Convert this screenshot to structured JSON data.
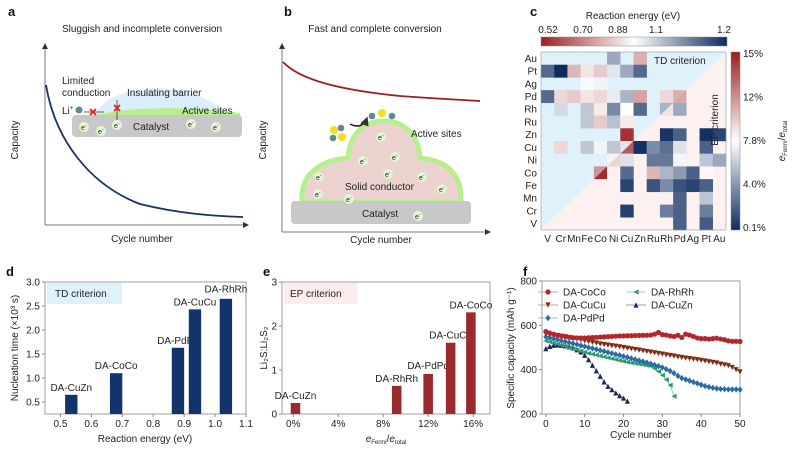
{
  "panel_a": {
    "label": "a",
    "title": "Sluggish and incomplete conversion",
    "ylabel": "Capacity",
    "xlabel": "Cycle number",
    "limited": "Limited",
    "conduction": "conduction",
    "li": "Li",
    "li_charge": "+",
    "barrier": "Insulating barrier",
    "active": "Active sites",
    "catalyst": "Catalyst",
    "electron": "e",
    "electron_charge": "-",
    "curve_color": "#1a2f6b"
  },
  "panel_b": {
    "label": "b",
    "title": "Fast and complete conversion",
    "ylabel": "Capacity",
    "xlabel": "Cycle number",
    "active": "Active sites",
    "conductor": "Solid conductor",
    "catalyst": "Catalyst",
    "electron": "e",
    "electron_charge": "-",
    "curve_color": "#9b1e22"
  },
  "chart_data": [
    {
      "panel": "c",
      "type": "heatmap",
      "label": "c",
      "top_colorbar": {
        "title": "Reaction energy (eV)",
        "ticks": [
          "0.52",
          "0.70",
          "0.88",
          "1.1",
          "1.2"
        ],
        "range": [
          0.52,
          1.2
        ],
        "colors": [
          "#9b1e22",
          "#ffffff",
          "#0d2b5e"
        ]
      },
      "right_colorbar": {
        "label_e": "e",
        "label_fermi": "Fermi",
        "label_slash": "/",
        "label_total": "total",
        "ticks": [
          "15%",
          "12%",
          "7.8%",
          "4.0%",
          "0.1%"
        ],
        "range": [
          0.1,
          15
        ],
        "colors": [
          "#0d2b5e",
          "#ffffff",
          "#9b1e22"
        ]
      },
      "rows": [
        "Au",
        "Pt",
        "Ag",
        "Pd",
        "Rh",
        "Ru",
        "Zn",
        "Cu",
        "Ni",
        "Co",
        "Fe",
        "Mn",
        "Cr",
        "V"
      ],
      "cols": [
        "V",
        "Cr",
        "Mn",
        "Fe",
        "Co",
        "Ni",
        "Cu",
        "Zn",
        "Ru",
        "Rh",
        "Pd",
        "Ag",
        "Pt",
        "Au"
      ],
      "td_label": "TD criterion",
      "ep_label": "EP criterion",
      "td_color": "#dff1fb",
      "ep_color": "#fcf0f1",
      "td_cells_reaction_energy_eV": [
        [
          "Au",
          "Ni",
          1.0
        ],
        [
          "Au",
          "Zn",
          0.74
        ],
        [
          "Pt",
          "V",
          1.1
        ],
        [
          "Pt",
          "Cr",
          1.2
        ],
        [
          "Pt",
          "Mn",
          0.75
        ],
        [
          "Pt",
          "Fe",
          0.82
        ],
        [
          "Pt",
          "Co",
          0.78
        ],
        [
          "Pt",
          "Ni",
          0.9
        ],
        [
          "Pt",
          "Cu",
          1.0
        ],
        [
          "Pt",
          "Zn",
          1.1
        ],
        [
          "Ag",
          "Fe",
          0.87
        ],
        [
          "Ag",
          "Co",
          0.88
        ],
        [
          "Pd",
          "V",
          1.1
        ],
        [
          "Pd",
          "Cr",
          0.8
        ],
        [
          "Pd",
          "Mn",
          0.78
        ],
        [
          "Pd",
          "Fe",
          0.82
        ],
        [
          "Pd",
          "Co",
          0.8
        ],
        [
          "Pd",
          "Ni",
          0.89
        ],
        [
          "Pd",
          "Cu",
          0.98
        ],
        [
          "Pd",
          "Zn",
          0.72
        ],
        [
          "Pd",
          "Rh",
          0.8
        ],
        [
          "Pd",
          "Pd",
          0.74
        ],
        [
          "Rh",
          "Cr",
          0.92
        ],
        [
          "Rh",
          "Fe",
          0.95
        ],
        [
          "Rh",
          "Co",
          0.83
        ],
        [
          "Rh",
          "Ni",
          1.05
        ],
        [
          "Rh",
          "Cu",
          0.86
        ],
        [
          "Rh",
          "Zn",
          1.1
        ],
        [
          "Rh",
          "Rh",
          0.98
        ],
        [
          "Ru",
          "Fe",
          0.95
        ],
        [
          "Ru",
          "Co",
          0.78
        ],
        [
          "Ru",
          "Ni",
          0.96
        ],
        [
          "Ru",
          "Cu",
          0.83
        ],
        [
          "Zn",
          "Cu",
          0.55
        ],
        [
          "Cu",
          "Cr",
          0.8
        ],
        [
          "Cu",
          "Fe",
          0.95
        ],
        [
          "Cu",
          "Co",
          0.88
        ],
        [
          "Cu",
          "Ni",
          0.95
        ],
        [
          "Cu",
          "Cu",
          0.9
        ],
        [
          "Ni",
          "Ni",
          0.84
        ],
        [
          "Co",
          "Co",
          0.7
        ]
      ],
      "ep_cells_percent": [
        [
          "Pd",
          "Pd",
          10.5
        ],
        [
          "Rh",
          "Rh",
          8.5
        ],
        [
          "Rh",
          "Pd",
          4.5
        ],
        [
          "Cu",
          "Cu",
          13
        ],
        [
          "Ni",
          "Ni",
          9
        ],
        [
          "Co",
          "Co",
          14.5
        ],
        [
          "Zn",
          "Rh",
          0.5
        ],
        [
          "Zn",
          "Pd",
          2
        ],
        [
          "Zn",
          "Pt",
          0.3
        ],
        [
          "Zn",
          "Au",
          1
        ],
        [
          "Cu",
          "Zn",
          0.3
        ],
        [
          "Cu",
          "Ru",
          3.5
        ],
        [
          "Cu",
          "Rh",
          2.5
        ],
        [
          "Cu",
          "Pd",
          6.5
        ],
        [
          "Cu",
          "Pt",
          2
        ],
        [
          "Ni",
          "Cu",
          6.5
        ],
        [
          "Ni",
          "Ru",
          2.8
        ],
        [
          "Ni",
          "Rh",
          2.8
        ],
        [
          "Ni",
          "Pd",
          7.2
        ],
        [
          "Ni",
          "Pt",
          5.5
        ],
        [
          "Ni",
          "Au",
          4.5
        ],
        [
          "Co",
          "Cu",
          2.3
        ],
        [
          "Co",
          "Ru",
          10
        ],
        [
          "Co",
          "Rh",
          5
        ],
        [
          "Co",
          "Pd",
          4
        ],
        [
          "Co",
          "Ag",
          2
        ],
        [
          "Co",
          "Pt",
          7.8
        ],
        [
          "Fe",
          "Cu",
          1
        ],
        [
          "Fe",
          "Ru",
          1.5
        ],
        [
          "Fe",
          "Rh",
          3.5
        ],
        [
          "Fe",
          "Pd",
          1.5
        ],
        [
          "Fe",
          "Ag",
          1
        ],
        [
          "Fe",
          "Pt",
          2
        ],
        [
          "Mn",
          "Pd",
          2
        ],
        [
          "Mn",
          "Pt",
          5.5
        ],
        [
          "Cr",
          "Cu",
          0.8
        ],
        [
          "Cr",
          "Rh",
          3
        ],
        [
          "Cr",
          "Pd",
          2
        ],
        [
          "Cr",
          "Pt",
          3
        ],
        [
          "V",
          "Pd",
          2
        ],
        [
          "V",
          "Pt",
          1.8
        ]
      ]
    },
    {
      "panel": "d",
      "type": "bar",
      "label": "d",
      "annotation": "TD criterion",
      "annotation_color": "#dff1fb",
      "xlabel": "Reaction energy (eV)",
      "ylabel": "Nucleation time (×10³ s)",
      "xlim": [
        0.45,
        1.1
      ],
      "ylim": [
        0.25,
        3.0
      ],
      "xticks": [
        0.5,
        0.6,
        0.7,
        0.8,
        0.9,
        1.0,
        1.1
      ],
      "xtick_labels": [
        "0.5",
        "0.6",
        "0.7",
        "0.8",
        "0.9",
        "1.0",
        "1.1"
      ],
      "yticks": [
        0.5,
        1.0,
        1.5,
        2.0,
        2.5,
        3.0
      ],
      "ytick_labels": [
        "0.5",
        "1.0",
        "1.5",
        "2.0",
        "2.5",
        "3.0"
      ],
      "color": "#13336b",
      "bars": [
        {
          "name": "DA-CuZn",
          "x": 0.535,
          "y": 0.65
        },
        {
          "name": "DA-CoCo",
          "x": 0.68,
          "y": 1.1
        },
        {
          "name": "DA-PdPd",
          "x": 0.88,
          "y": 1.63
        },
        {
          "name": "DA-CuCu",
          "x": 0.935,
          "y": 2.43
        },
        {
          "name": "DA-RhRh",
          "x": 1.035,
          "y": 2.65
        }
      ]
    },
    {
      "panel": "e",
      "type": "bar",
      "label": "e",
      "annotation": "EP criterion",
      "annotation_color": "#fcecee",
      "xlabel_e": "e",
      "xlabel_fermi": "Fermi",
      "xlabel_slash": "/",
      "xlabel_total": "total",
      "ylabel": "Li₂S:Li₂S₂",
      "xlim": [
        -1,
        17.5
      ],
      "ylim": [
        0,
        3
      ],
      "xticks": [
        0,
        4,
        8,
        12,
        16
      ],
      "xtick_labels": [
        "0%",
        "4%",
        "8%",
        "12%",
        "16%"
      ],
      "yticks": [
        0,
        1,
        2,
        3
      ],
      "ytick_labels": [
        "0",
        "1",
        "2",
        "3"
      ],
      "color": "#9b2a2e",
      "bars": [
        {
          "name": "DA-CuZn",
          "x": 0.2,
          "y": 0.25
        },
        {
          "name": "DA-RhRh",
          "x": 9.2,
          "y": 0.64
        },
        {
          "name": "DA-PdPd",
          "x": 12.0,
          "y": 0.91
        },
        {
          "name": "DA-CuCu",
          "x": 14.0,
          "y": 1.62
        },
        {
          "name": "DA-CoCo",
          "x": 15.8,
          "y": 2.31
        }
      ]
    },
    {
      "panel": "f",
      "type": "line",
      "label": "f",
      "xlabel": "Cycle number",
      "ylabel": "Specific capacity (mAh g⁻¹)",
      "xlim": [
        -1,
        50
      ],
      "ylim": [
        200,
        800
      ],
      "xticks": [
        0,
        10,
        20,
        30,
        40,
        50
      ],
      "xtick_labels": [
        "0",
        "10",
        "20",
        "30",
        "40",
        "50"
      ],
      "yticks": [
        200,
        400,
        600,
        800
      ],
      "ytick_labels": [
        "200",
        "400",
        "600",
        "800"
      ],
      "legend_position": "top",
      "series": [
        {
          "name": "DA-CoCo",
          "color": "#b3262d",
          "marker": "circle",
          "values": [
            572,
            565,
            560,
            555,
            552,
            550,
            546,
            544,
            543,
            543,
            543,
            544,
            545,
            546,
            547,
            548,
            549,
            550,
            551,
            552,
            552,
            553,
            553,
            554,
            554,
            555,
            555,
            556,
            560,
            568,
            558,
            556,
            552,
            550,
            555,
            545,
            560,
            556,
            550,
            543,
            540,
            540,
            538,
            540,
            542,
            538,
            535,
            530,
            528,
            528,
            527
          ]
        },
        {
          "name": "DA-CuCu",
          "color": "#7a2c10",
          "marker": "triangle-down",
          "values": [
            562,
            559,
            556,
            554,
            551,
            548,
            545,
            541,
            538,
            534,
            530,
            527,
            523,
            520,
            516,
            513,
            511,
            508,
            506,
            503,
            500,
            497,
            494,
            491,
            488,
            485,
            482,
            479,
            476,
            473,
            470,
            467,
            464,
            461,
            458,
            455,
            452,
            450,
            447,
            445,
            442,
            439,
            436,
            433,
            430,
            425,
            422,
            418,
            410,
            400,
            390
          ]
        },
        {
          "name": "DA-PdPd",
          "color": "#2b6ca3",
          "marker": "diamond",
          "values": [
            548,
            544,
            540,
            536,
            531,
            527,
            522,
            518,
            514,
            509,
            505,
            500,
            496,
            492,
            487,
            483,
            478,
            474,
            469,
            465,
            460,
            456,
            451,
            446,
            441,
            437,
            432,
            427,
            421,
            416,
            410,
            402,
            394,
            384,
            372,
            362,
            356,
            350,
            344,
            338,
            332,
            326,
            322,
            318,
            315,
            313,
            312,
            311,
            311,
            311,
            310
          ]
        },
        {
          "name": "DA-RhRh",
          "color": "#2e9a6c",
          "marker": "triangle-left",
          "values": [
            530,
            525,
            520,
            515,
            510,
            504,
            499,
            494,
            489,
            484,
            479,
            474,
            470,
            466,
            462,
            458,
            454,
            450,
            446,
            442,
            438,
            434,
            431,
            428,
            425,
            422,
            419,
            416,
            405,
            392,
            375,
            355,
            330,
            280
          ]
        },
        {
          "name": "DA-CuZn",
          "color": "#1c2757",
          "marker": "triangle-up",
          "values": [
            495,
            505,
            510,
            512,
            510,
            507,
            503,
            498,
            490,
            480,
            465,
            445,
            420,
            395,
            370,
            345,
            325,
            310,
            295,
            283,
            272,
            258
          ]
        }
      ]
    }
  ]
}
